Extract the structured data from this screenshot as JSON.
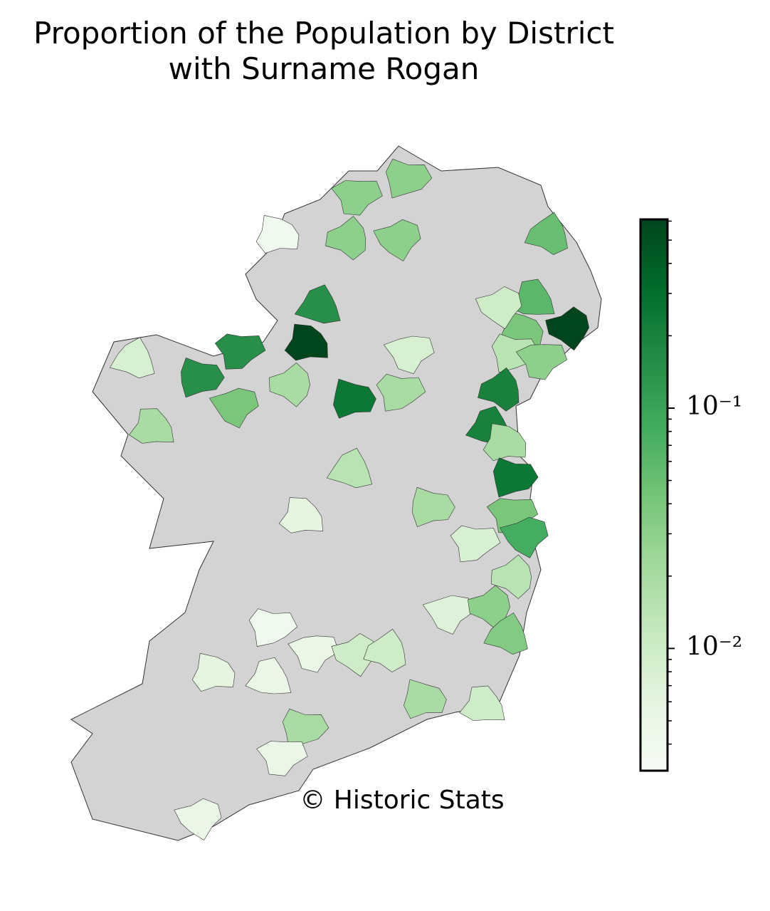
{
  "chart_data": {
    "type": "choropleth",
    "title": "Proportion of the Population by District\nwith Surname Rogan",
    "annotation": "© Historic Stats",
    "cmap": "Greens",
    "log_scale": true,
    "no_data_color": "#d3d3d3",
    "values": [
      0.004,
      0.03,
      0.03,
      0.03,
      0.03,
      0.15,
      0.6,
      0.15,
      0.15,
      0.04,
      0.02,
      0.008,
      0.02,
      0.25,
      0.02,
      0.008,
      0.6,
      0.05,
      0.06,
      0.04,
      0.015,
      0.03,
      0.01,
      0.2,
      0.2,
      0.02,
      0.25,
      0.04,
      0.08,
      0.015,
      0.015,
      0.006,
      0.02,
      0.008,
      0.007,
      0.03,
      0.035,
      0.01,
      0.02,
      0.004,
      0.005,
      0.01,
      0.01,
      0.005,
      0.006,
      0.02,
      0.005,
      0.005
    ],
    "clim": [
      0.0031,
      0.61
    ],
    "cticks": [
      {
        "value": 0.1,
        "label": "10⁻¹"
      },
      {
        "value": 0.01,
        "label": "10⁻²"
      }
    ],
    "cminorticks": [
      0.004,
      0.005,
      0.006,
      0.007,
      0.008,
      0.009,
      0.02,
      0.03,
      0.04,
      0.05,
      0.06,
      0.07,
      0.08,
      0.09,
      0.2,
      0.3,
      0.4,
      0.5,
      0.6
    ]
  }
}
